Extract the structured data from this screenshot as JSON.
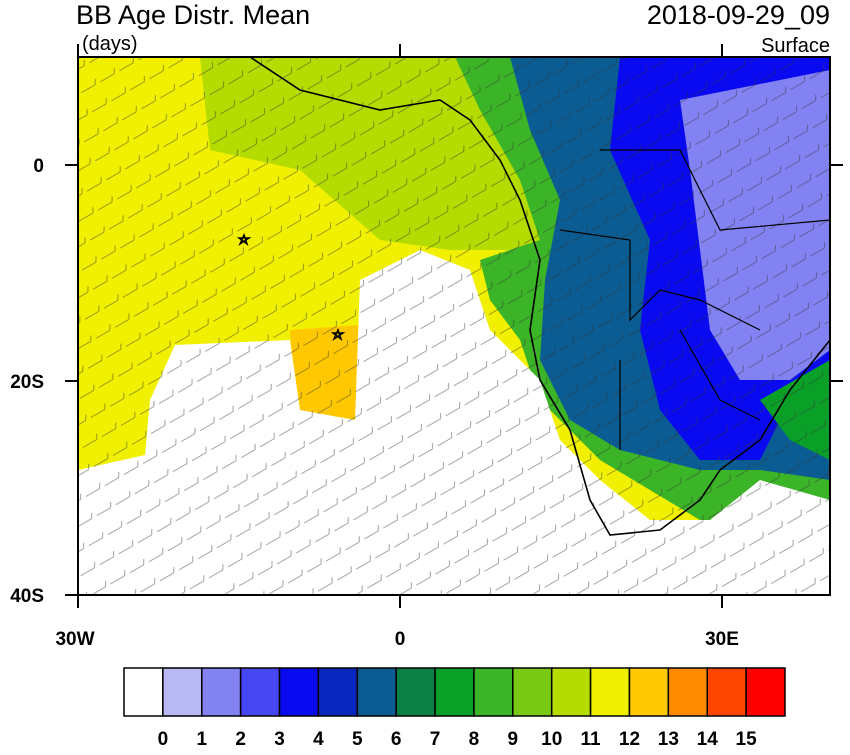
{
  "header": {
    "title": "BB Age Distr. Mean",
    "units": "(days)",
    "date": "2018-09-29_09",
    "level": "Surface"
  },
  "map": {
    "x_labels": [
      "30W",
      "0",
      "30E"
    ],
    "y_labels": [
      "0",
      "20S",
      "40S"
    ]
  },
  "colorbar": {
    "labels": [
      "0",
      "1",
      "2",
      "3",
      "4",
      "5",
      "6",
      "7",
      "8",
      "9",
      "10",
      "11",
      "12",
      "13",
      "14",
      "15"
    ],
    "colors": [
      "#ffffff",
      "#b8b8f4",
      "#8282f2",
      "#4646f2",
      "#0a0af0",
      "#0a28c0",
      "#0a5c92",
      "#0a8046",
      "#0aa028",
      "#3cb428",
      "#78c814",
      "#b4dc00",
      "#f0f000",
      "#ffc800",
      "#ff8c00",
      "#ff4600",
      "#ff0000"
    ]
  }
}
